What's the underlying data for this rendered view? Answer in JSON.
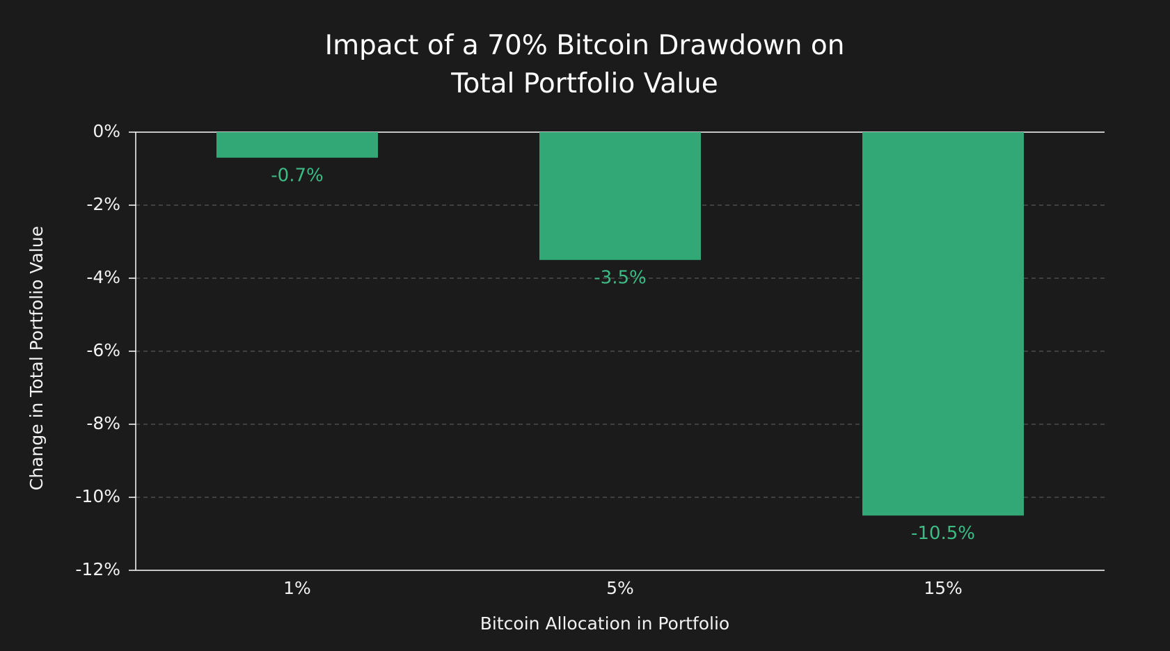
{
  "chart_data": {
    "type": "bar",
    "title": "Impact of a 70% Bitcoin Drawdown on Total Portfolio Value",
    "x_label": "Bitcoin Allocation in Portfolio",
    "y_label": "Change in Total Portfolio Value",
    "categories": [
      "1%",
      "5%",
      "15%"
    ],
    "values": [
      -0.7,
      -3.5,
      -10.5
    ],
    "value_labels": [
      "-0.7%",
      "-3.5%",
      "-10.5%"
    ],
    "color": "#33a877",
    "ylim": [
      -12,
      0
    ],
    "yticks": [
      {
        "value": 0,
        "label": "0%"
      },
      {
        "value": -2,
        "label": "-2%"
      },
      {
        "value": -4,
        "label": "-4%"
      },
      {
        "value": -6,
        "label": "-6%"
      },
      {
        "value": -8,
        "label": "-8%"
      },
      {
        "value": -10,
        "label": "-10%"
      },
      {
        "value": -12,
        "label": "-12%"
      }
    ],
    "grid": true
  }
}
